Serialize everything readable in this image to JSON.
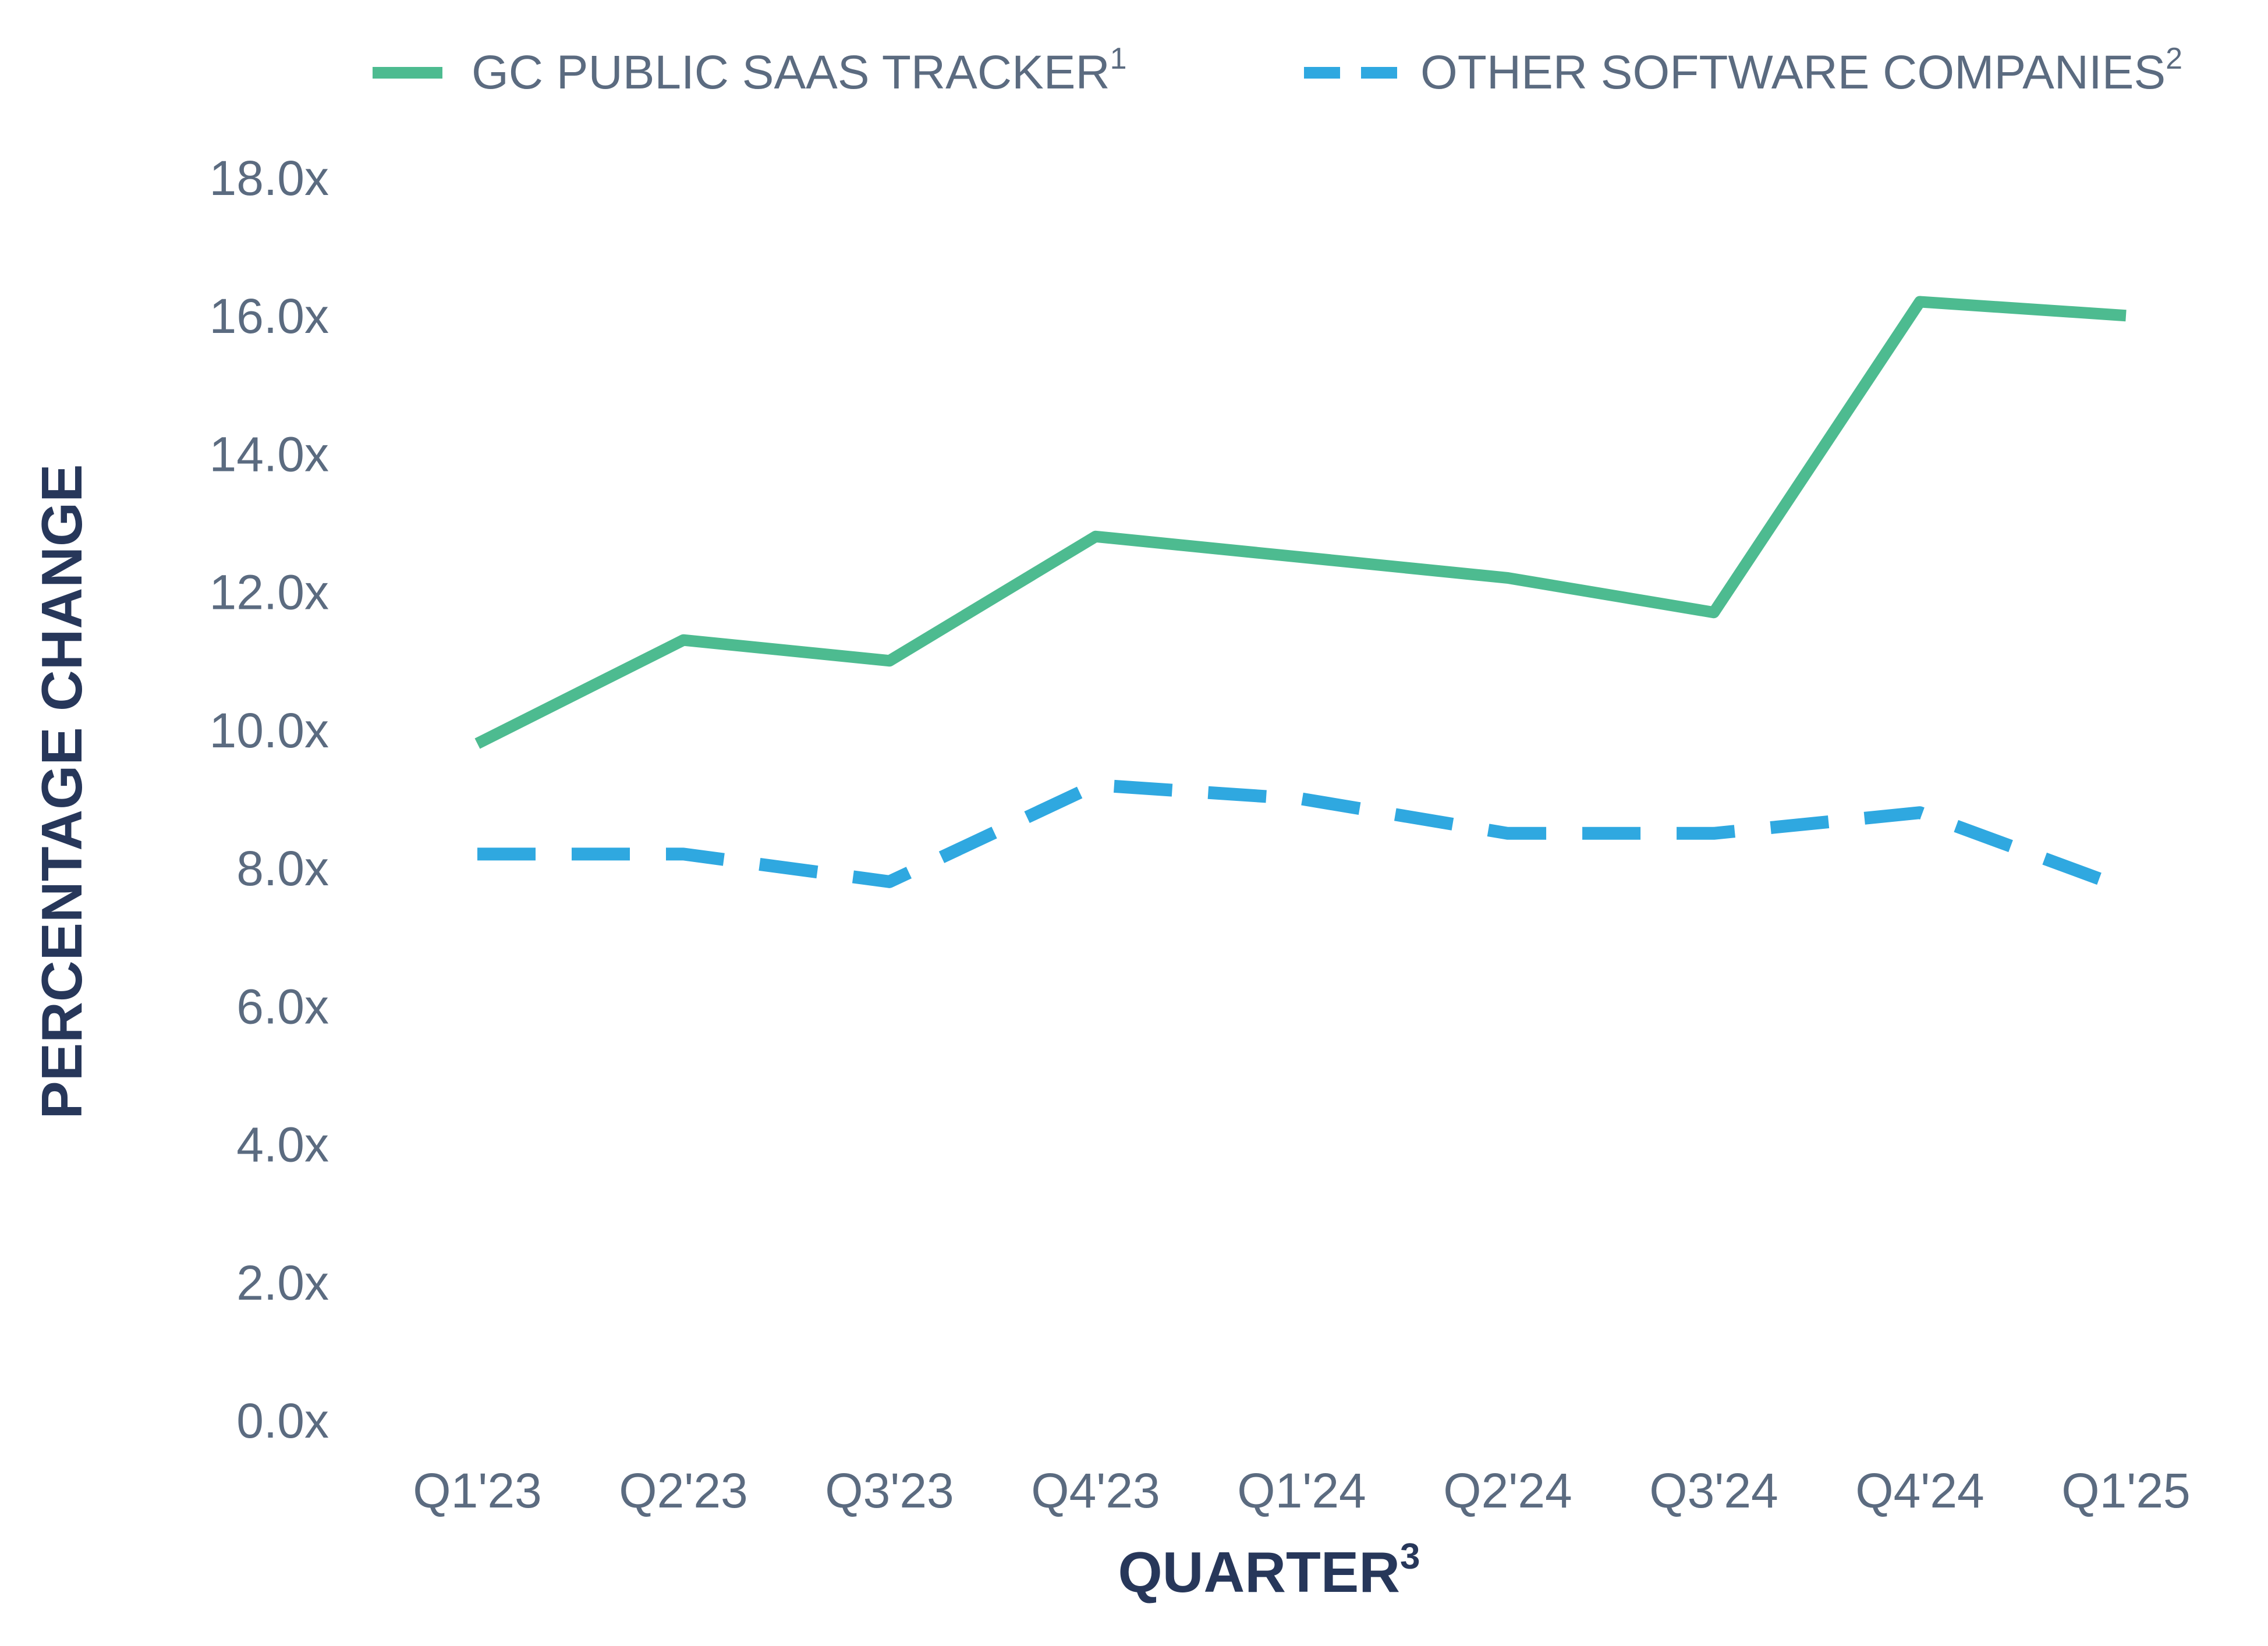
{
  "chart_data": {
    "type": "line",
    "categories": [
      "Q1'23",
      "Q2'23",
      "Q3'23",
      "Q4'23",
      "Q1'24",
      "Q2'24",
      "Q3'24",
      "Q4'24",
      "Q1'25"
    ],
    "series": [
      {
        "name": "GC PUBLIC SAAS TRACKER",
        "superscript": "1",
        "style": "solid",
        "color": "#4dbb90",
        "values": [
          9.8,
          11.3,
          11.0,
          12.8,
          12.5,
          12.2,
          11.7,
          16.2,
          16.0
        ]
      },
      {
        "name": "OTHER SOFTWARE COMPANIES",
        "superscript": "2",
        "style": "dashed",
        "color": "#2fa8e0",
        "values": [
          8.2,
          8.2,
          7.8,
          9.2,
          9.0,
          8.5,
          8.5,
          8.8,
          7.7
        ]
      }
    ],
    "xlabel": "QUARTER",
    "xlabel_superscript": "3",
    "ylabel": "PERCENTAGE CHANGE",
    "ylim": [
      0,
      18
    ],
    "yticks": [
      0,
      2,
      4,
      6,
      8,
      10,
      12,
      14,
      16,
      18
    ],
    "ytick_labels": [
      "0.0x",
      "2.0x",
      "4.0x",
      "6.0x",
      "8.0x",
      "10.0x",
      "12.0x",
      "14.0x",
      "16.0x",
      "18.0x"
    ],
    "grid": false,
    "legend_position": "top",
    "axis_color": "#4dbb90",
    "tick_label_color": "#5b6b80",
    "axis_title_color": "#27375a"
  }
}
